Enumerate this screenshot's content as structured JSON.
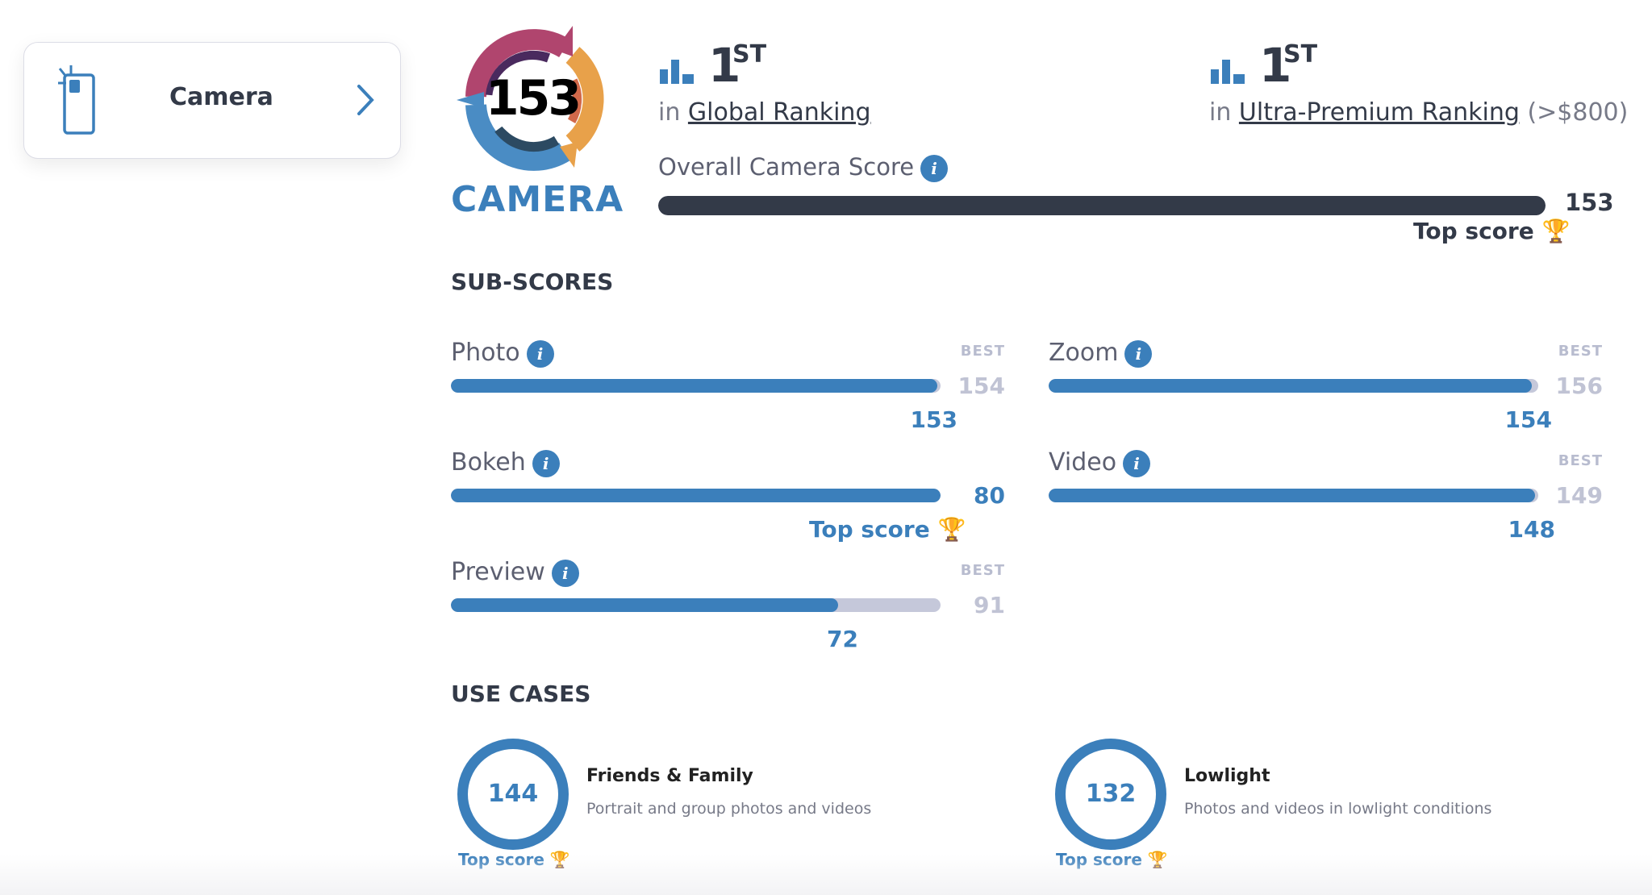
{
  "nav_card": {
    "label": "Camera",
    "icon": "phone-camera-icon",
    "chevron": "chevron-right-icon"
  },
  "badge": {
    "score": "153",
    "label": "CAMERA"
  },
  "rankings": [
    {
      "rank": "1",
      "suffix": "ST",
      "prefix": "in",
      "link": "Global Ranking",
      "extra": ""
    },
    {
      "rank": "1",
      "suffix": "ST",
      "prefix": "in",
      "link": "Ultra-Premium Ranking",
      "extra": "(>$800)"
    }
  ],
  "overall": {
    "label": "Overall Camera Score",
    "score": "153",
    "percent": 100,
    "top_label": "Top score"
  },
  "subscores_title": "SUB-SCORES",
  "best_label": "BEST",
  "subscores": [
    {
      "name": "Photo",
      "score": "153",
      "best": "154",
      "percent": 99.4,
      "top": false
    },
    {
      "name": "Zoom",
      "score": "154",
      "best": "156",
      "percent": 98.7,
      "top": false
    },
    {
      "name": "Bokeh",
      "score": "80",
      "best": "",
      "percent": 100,
      "top": true
    },
    {
      "name": "Video",
      "score": "148",
      "best": "149",
      "percent": 99.3,
      "top": false
    },
    {
      "name": "Preview",
      "score": "72",
      "best": "91",
      "percent": 79.1,
      "top": false
    }
  ],
  "top_score_label": "Top score",
  "usecases_title": "USE CASES",
  "usecases": [
    {
      "score": "144",
      "title": "Friends & Family",
      "desc": "Portrait and group photos and videos",
      "top": "Top score"
    },
    {
      "score": "132",
      "title": "Lowlight",
      "desc": "Photos and videos in lowlight conditions",
      "top": "Top score"
    }
  ],
  "colors": {
    "accent": "#3b7fbb",
    "dark": "#333a48",
    "track": "#c5c8da",
    "trophy": "#f2b233"
  }
}
